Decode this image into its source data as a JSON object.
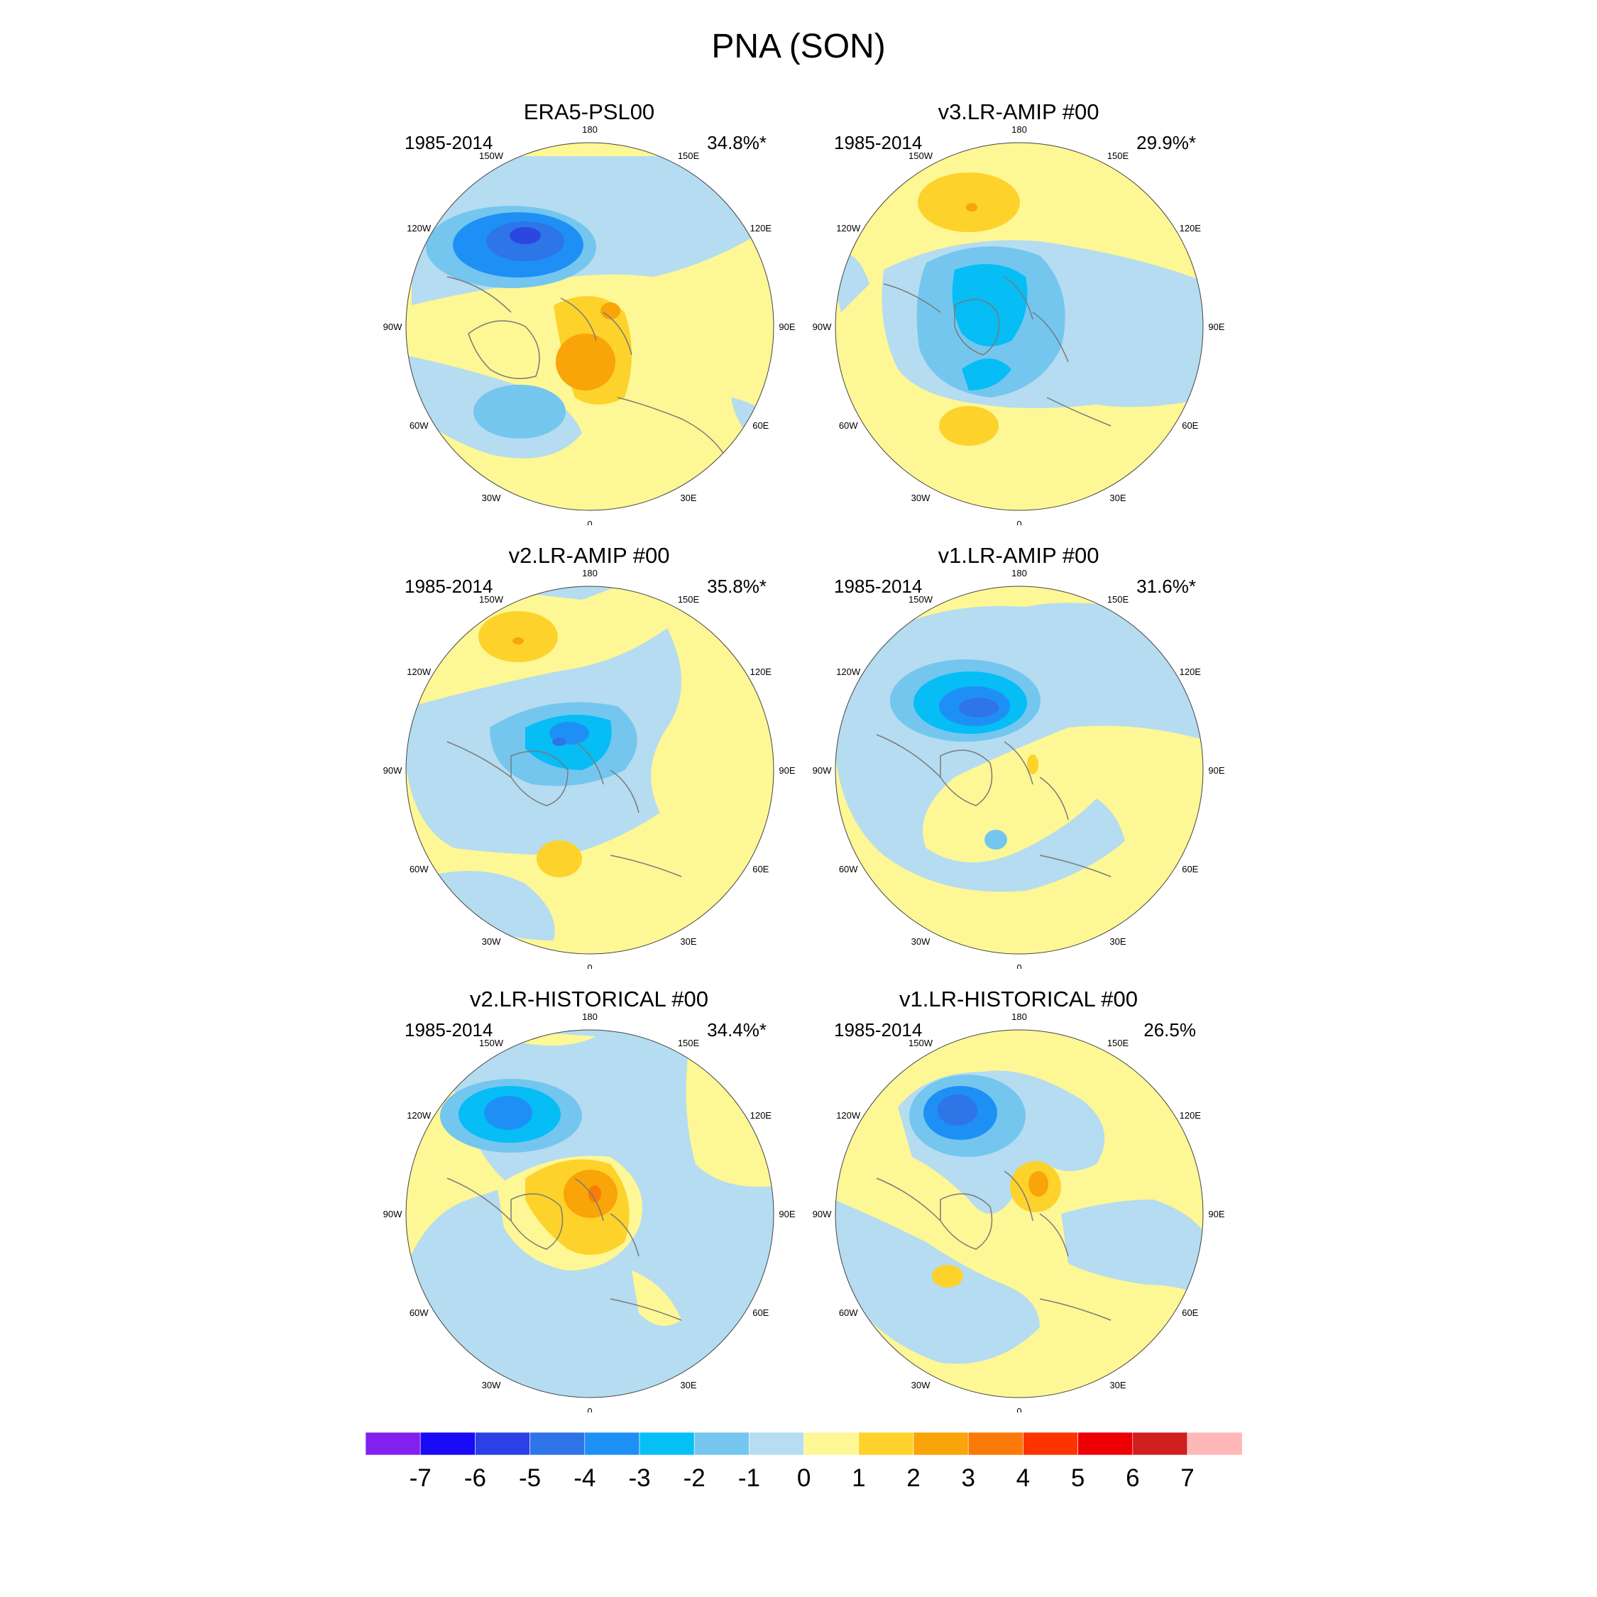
{
  "title": "PNA (SON)",
  "colors": {
    "blue_m1": "#b5dcf0",
    "blue_m2": "#74c6ef",
    "blue_m3": "#06bdf5",
    "blue_m4": "#1e90f5",
    "blue_m5": "#2e75e8",
    "blue_m6": "#2b47e0",
    "yellow_p0": "#fdf795",
    "yellow_p1": "#fdd22b",
    "orange_p2": "#f9a408",
    "orange_p3": "#fb7b06",
    "coast": "#7a7a7a"
  },
  "lon_labels": [
    "180",
    "150E",
    "120E",
    "90E",
    "60E",
    "30E",
    "0",
    "30W",
    "60W",
    "90W",
    "120W",
    "150W"
  ],
  "colorbar": {
    "labels": [
      "-7",
      "-6",
      "-5",
      "-4",
      "-3",
      "-2",
      "-1",
      "0",
      "1",
      "2",
      "3",
      "4",
      "5",
      "6",
      "7"
    ],
    "colors": [
      "#8220ef",
      "#1a0af5",
      "#2b40e6",
      "#2e73e8",
      "#1d90f6",
      "#06bff6",
      "#75c7f0",
      "#b6ddf1",
      "#fdf796",
      "#fdd22b",
      "#f9a408",
      "#fb7906",
      "#fd3400",
      "#ec0004",
      "#d01f1f",
      "#ffb8b8"
    ]
  },
  "panels": [
    {
      "title": "ERA5-PSL00",
      "years": "1985-2014",
      "pct": "34.8%*"
    },
    {
      "title": "v3.LR-AMIP  #00",
      "years": "1985-2014",
      "pct": "29.9%*"
    },
    {
      "title": "v2.LR-AMIP  #00",
      "years": "1985-2014",
      "pct": "35.8%*"
    },
    {
      "title": "v1.LR-AMIP  #00",
      "years": "1985-2014",
      "pct": "31.6%*"
    },
    {
      "title": "v2.LR-HISTORICAL  #00",
      "years": "1985-2014",
      "pct": "34.4%*"
    },
    {
      "title": "v1.LR-HISTORICAL  #00",
      "years": "1985-2014",
      "pct": "26.5%"
    }
  ],
  "chart_data": {
    "type": "heatmap",
    "title": "PNA (SON)",
    "projection": "north polar stereographic",
    "contour_levels": [
      -7,
      -6,
      -5,
      -4,
      -3,
      -2,
      -1,
      0,
      1,
      2,
      3,
      4,
      5,
      6,
      7
    ],
    "maps": [
      {
        "name": "ERA5-PSL00",
        "period": "1985-2014",
        "variance_explained": "34.8%*"
      },
      {
        "name": "v3.LR-AMIP  #00",
        "period": "1985-2014",
        "variance_explained": "29.9%*"
      },
      {
        "name": "v2.LR-AMIP  #00",
        "period": "1985-2014",
        "variance_explained": "35.8%*"
      },
      {
        "name": "v1.LR-AMIP  #00",
        "period": "1985-2014",
        "variance_explained": "31.6%*"
      },
      {
        "name": "v2.LR-HISTORICAL  #00",
        "period": "1985-2014",
        "variance_explained": "34.4%*"
      },
      {
        "name": "v1.LR-HISTORICAL  #00",
        "period": "1985-2014",
        "variance_explained": "26.5%"
      }
    ]
  }
}
